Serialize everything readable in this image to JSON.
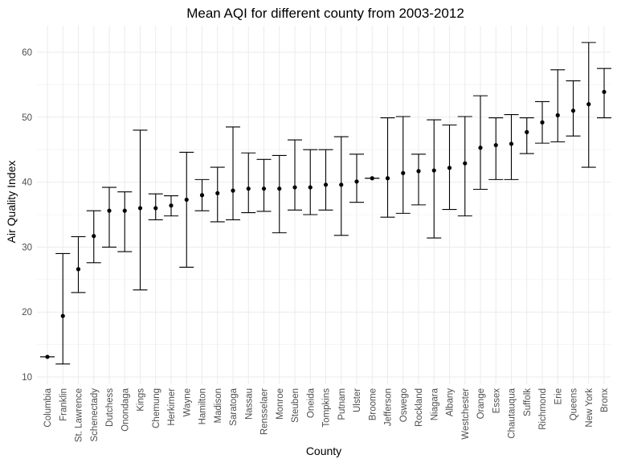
{
  "chart_data": {
    "type": "errorbar",
    "title": "Mean AQI for different county from 2003-2012",
    "xlabel": "County",
    "ylabel": "Air Quality Index",
    "ylim": [
      10,
      64
    ],
    "yticks": [
      10,
      20,
      30,
      40,
      50,
      60
    ],
    "grid": true,
    "categories": [
      "Columbia",
      "Franklin",
      "St. Lawrence",
      "Schenectady",
      "Dutchess",
      "Onondaga",
      "Kings",
      "Chemung",
      "Herkimer",
      "Wayne",
      "Hamilton",
      "Madison",
      "Saratoga",
      "Nassau",
      "Rensselaer",
      "Monroe",
      "Steuben",
      "Oneida",
      "Tompkins",
      "Putnam",
      "Ulster",
      "Broome",
      "Jefferson",
      "Oswego",
      "Rockland",
      "Niagara",
      "Albany",
      "Westchester",
      "Orange",
      "Essex",
      "Chautauqua",
      "Suffolk",
      "Richmond",
      "Erie",
      "Queens",
      "New York",
      "Bronx"
    ],
    "mean": [
      13.1,
      19.4,
      26.6,
      31.7,
      35.6,
      35.6,
      36.0,
      36.0,
      36.4,
      37.3,
      38.0,
      38.3,
      38.7,
      39.0,
      39.0,
      39.0,
      39.2,
      39.2,
      39.6,
      39.6,
      40.1,
      40.6,
      40.6,
      41.4,
      41.7,
      41.8,
      42.2,
      42.9,
      45.3,
      45.7,
      45.9,
      47.7,
      49.2,
      50.3,
      51.0,
      52.0,
      53.9
    ],
    "lower": [
      13.1,
      12.0,
      23.0,
      27.6,
      30.0,
      29.3,
      23.4,
      34.2,
      34.8,
      26.9,
      35.6,
      33.9,
      34.2,
      35.3,
      35.5,
      32.2,
      35.7,
      35.0,
      35.7,
      31.8,
      36.9,
      40.6,
      34.6,
      35.2,
      36.5,
      31.4,
      35.8,
      34.8,
      38.9,
      40.4,
      40.4,
      44.4,
      46.0,
      46.2,
      47.1,
      42.3,
      49.9
    ],
    "upper": [
      13.1,
      29.0,
      31.6,
      35.6,
      39.2,
      38.5,
      48.0,
      38.2,
      37.9,
      44.6,
      40.4,
      42.3,
      48.5,
      44.5,
      43.5,
      44.1,
      46.5,
      45.0,
      45.0,
      47.0,
      44.3,
      40.6,
      49.9,
      50.1,
      44.3,
      49.6,
      48.8,
      50.1,
      53.3,
      49.9,
      50.4,
      49.9,
      52.4,
      57.3,
      55.6,
      61.5,
      57.5
    ]
  }
}
